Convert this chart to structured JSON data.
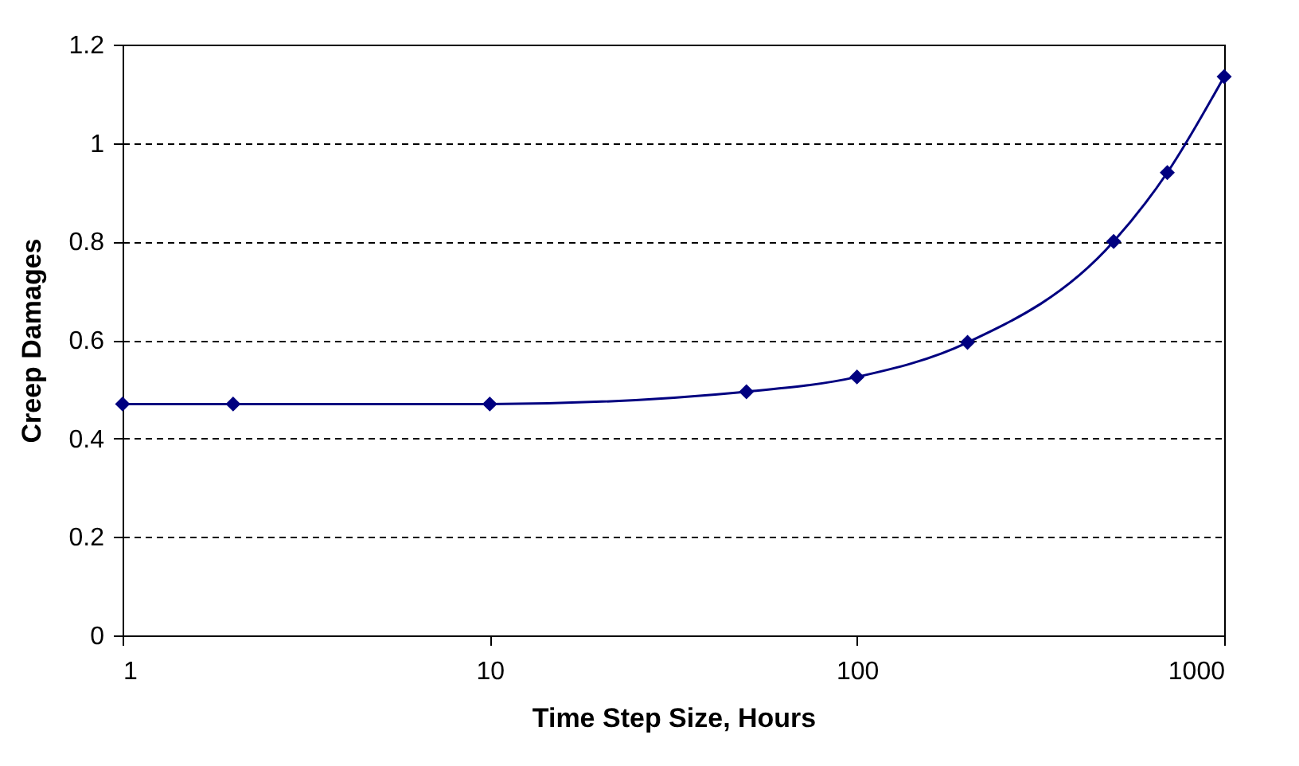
{
  "chart_data": {
    "type": "line",
    "xlabel": "Time Step Size, Hours",
    "ylabel": "Creep Damages",
    "x": [
      1,
      2,
      10,
      50,
      100,
      200,
      500,
      700,
      1000
    ],
    "series": [
      {
        "color": "#000080",
        "values": [
          0.47,
          0.47,
          0.47,
          0.495,
          0.525,
          0.595,
          0.8,
          0.94,
          1.135
        ]
      }
    ],
    "log": "x",
    "xlim": [
      1,
      1000
    ],
    "xticks": [
      1,
      10,
      100,
      1000
    ],
    "ylim": [
      0,
      1.2
    ],
    "yticks": [
      0,
      0.2,
      0.4,
      0.6,
      0.8,
      1,
      1.2
    ],
    "grid": "y",
    "marker": "diamond",
    "line_style": "solid"
  }
}
